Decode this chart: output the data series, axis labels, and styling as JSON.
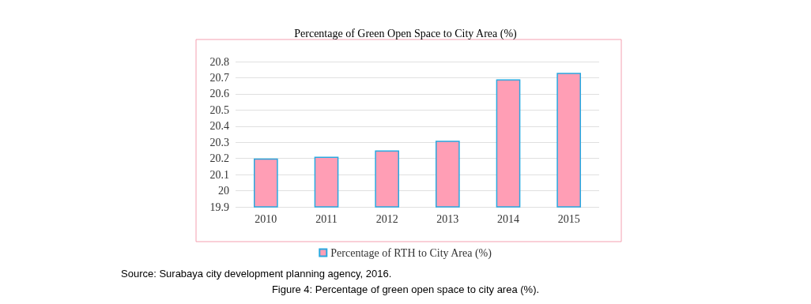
{
  "chart_data": {
    "type": "bar",
    "title": "Percentage of Green Open Space to City Area (%)",
    "categories": [
      "2010",
      "2011",
      "2012",
      "2013",
      "2014",
      "2015"
    ],
    "series": [
      {
        "name": "Percentage of RTH to City Area (%)",
        "color": "#ff9eb5",
        "values": [
          20.2,
          20.21,
          20.25,
          20.31,
          20.69,
          20.73
        ]
      }
    ],
    "ylim": [
      19.9,
      20.8
    ],
    "yticks": [
      19.9,
      20,
      20.1,
      20.2,
      20.3,
      20.4,
      20.5,
      20.6,
      20.7,
      20.8
    ],
    "grid": "y",
    "legend": "bottom",
    "annotations": [
      "Source: Surabaya city development planning agency, 2016.",
      "Figure 4: Percentage of green open space to city area (%)."
    ]
  }
}
